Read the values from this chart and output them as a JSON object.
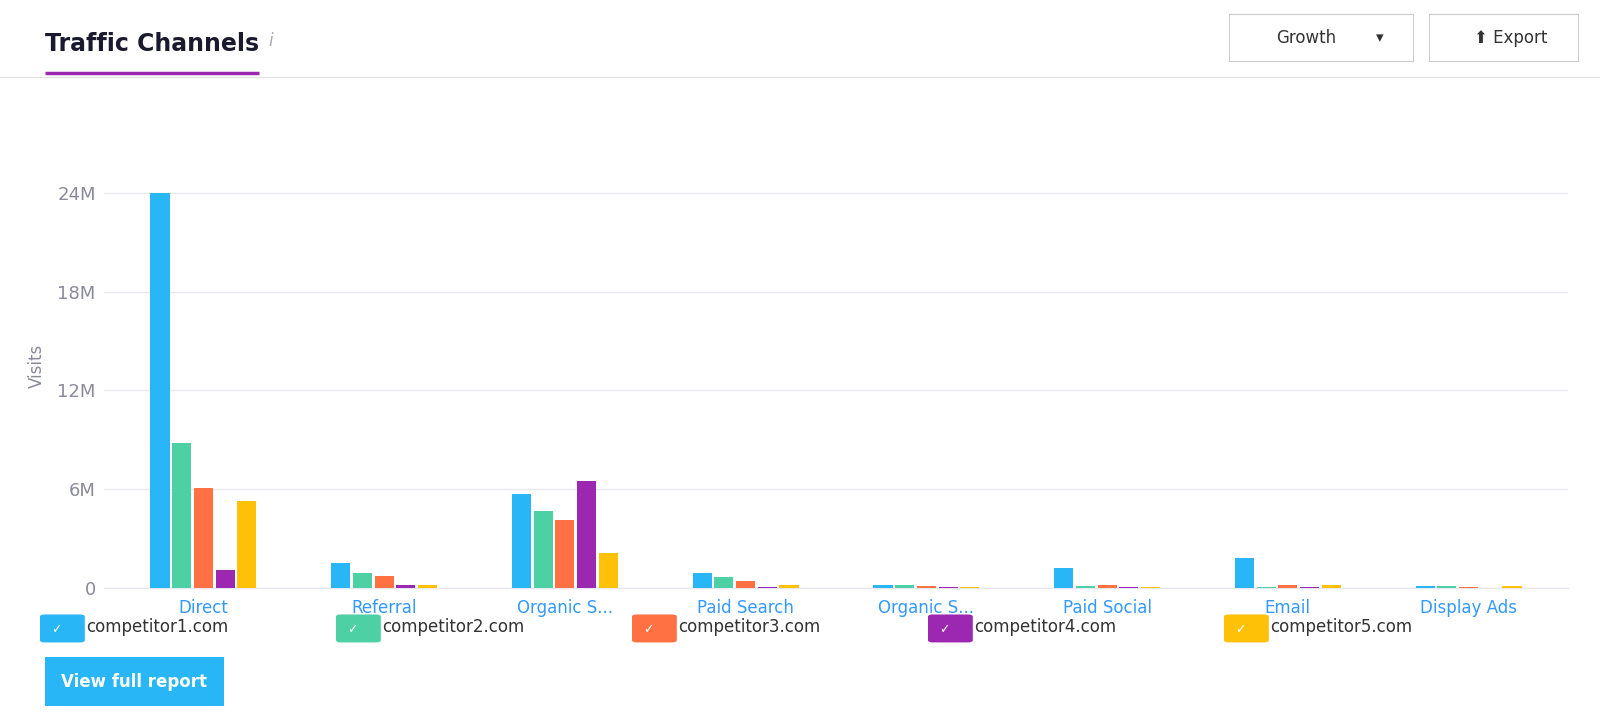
{
  "title": "Traffic Channels",
  "ylabel": "Visits",
  "background_color": "#ffffff",
  "categories": [
    "Direct",
    "Referral",
    "Organic S...",
    "Paid Search",
    "Organic S...",
    "Paid Social",
    "Email",
    "Display Ads"
  ],
  "competitors": [
    "competitor1.com",
    "competitor2.com",
    "competitor3.com",
    "competitor4.com",
    "competitor5.com"
  ],
  "colors": [
    "#29b6f6",
    "#4dd0a4",
    "#ff7043",
    "#9c27b0",
    "#ffc107"
  ],
  "data": [
    [
      24000000,
      1500000,
      5700000,
      900000,
      150000,
      1200000,
      1800000,
      100000
    ],
    [
      8800000,
      900000,
      4700000,
      650000,
      200000,
      100000,
      80000,
      120000
    ],
    [
      6100000,
      750000,
      4100000,
      450000,
      100000,
      200000,
      200000,
      40000
    ],
    [
      1100000,
      180000,
      6500000,
      80000,
      60000,
      80000,
      60000,
      25000
    ],
    [
      5300000,
      180000,
      2100000,
      200000,
      80000,
      80000,
      150000,
      130000
    ]
  ],
  "yticks": [
    0,
    6000000,
    12000000,
    18000000,
    24000000
  ],
  "ytick_labels": [
    "0",
    "6M",
    "12M",
    "18M",
    "24M"
  ],
  "title_color": "#1a1a2e",
  "axis_label_color": "#8a8a9a",
  "tick_label_color": "#8a8a9a",
  "grid_color": "#e8e8f0",
  "category_label_color": "#3399ff",
  "title_underline_color": "#9c27b0",
  "separator_color": "#e0e0e0",
  "button_color": "#29b6f6",
  "button_text": "View full report",
  "info_icon_color": "#aaaaaa",
  "growth_btn_text": "Growth",
  "export_btn_text": "Export"
}
